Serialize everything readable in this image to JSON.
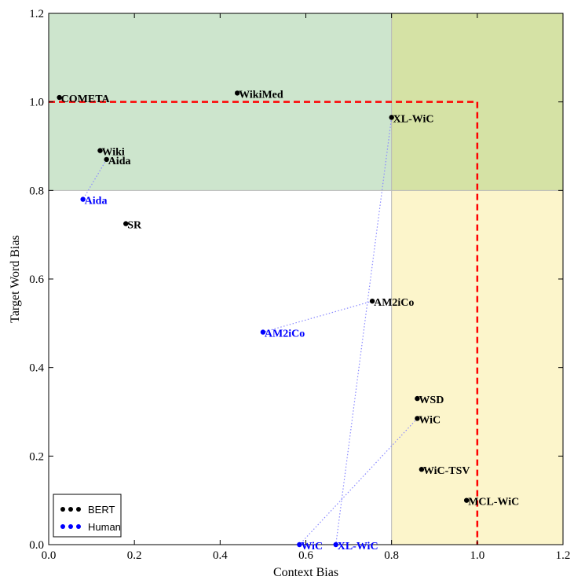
{
  "chart_data": {
    "type": "scatter",
    "xlabel": "Context Bias",
    "ylabel": "Target Word Bias",
    "xlim": [
      0,
      1.2
    ],
    "ylim": [
      0,
      1.2
    ],
    "x_ticks": [
      "0.0",
      "0.2",
      "0.4",
      "0.6",
      "0.8",
      "1.0",
      "1.2"
    ],
    "y_ticks": [
      "0.0",
      "0.2",
      "0.4",
      "0.6",
      "0.8",
      "1.0",
      "1.2"
    ],
    "grid": false,
    "legend_position": "bottom-left",
    "regions": [
      {
        "x": [
          0.0,
          0.8
        ],
        "y": [
          0.8,
          1.2
        ],
        "color": "#cde5cd"
      },
      {
        "x": [
          0.8,
          1.2
        ],
        "y": [
          0.8,
          1.2
        ],
        "color": "#d5e2a5"
      },
      {
        "x": [
          0.8,
          1.2
        ],
        "y": [
          0.0,
          0.8
        ],
        "color": "#fcf5cb"
      }
    ],
    "threshold": {
      "x": 1.0,
      "y": 1.0,
      "color": "#ff0000",
      "style": "dashed"
    },
    "series": [
      {
        "name": "BERT",
        "color": "#000000",
        "points": [
          {
            "label": "COMETA",
            "x": 0.025,
            "y": 1.01
          },
          {
            "label": "WikiMed",
            "x": 0.44,
            "y": 1.02
          },
          {
            "label": "XL-WiC",
            "x": 0.8,
            "y": 0.965
          },
          {
            "label": "Wiki",
            "x": 0.12,
            "y": 0.89
          },
          {
            "label": "Aida",
            "x": 0.135,
            "y": 0.87
          },
          {
            "label": "SR",
            "x": 0.18,
            "y": 0.725
          },
          {
            "label": "AM2iCo",
            "x": 0.755,
            "y": 0.55
          },
          {
            "label": "WSD",
            "x": 0.86,
            "y": 0.33
          },
          {
            "label": "WiC",
            "x": 0.86,
            "y": 0.285
          },
          {
            "label": "WiC-TSV",
            "x": 0.87,
            "y": 0.17
          },
          {
            "label": "MCL-WiC",
            "x": 0.975,
            "y": 0.1
          }
        ]
      },
      {
        "name": "Human",
        "color": "#0000ff",
        "points": [
          {
            "label": "Aida",
            "x": 0.08,
            "y": 0.78
          },
          {
            "label": "AM2iCo",
            "x": 0.5,
            "y": 0.48
          },
          {
            "label": "WiC",
            "x": 0.585,
            "y": 0.0
          },
          {
            "label": "XL-WiC",
            "x": 0.67,
            "y": 0.0
          }
        ]
      }
    ],
    "connections": [
      {
        "bert": "Aida",
        "human": "Aida"
      },
      {
        "bert": "AM2iCo",
        "human": "AM2iCo"
      },
      {
        "bert": "WiC",
        "human": "WiC"
      },
      {
        "bert": "XL-WiC",
        "human": "XL-WiC"
      }
    ]
  }
}
